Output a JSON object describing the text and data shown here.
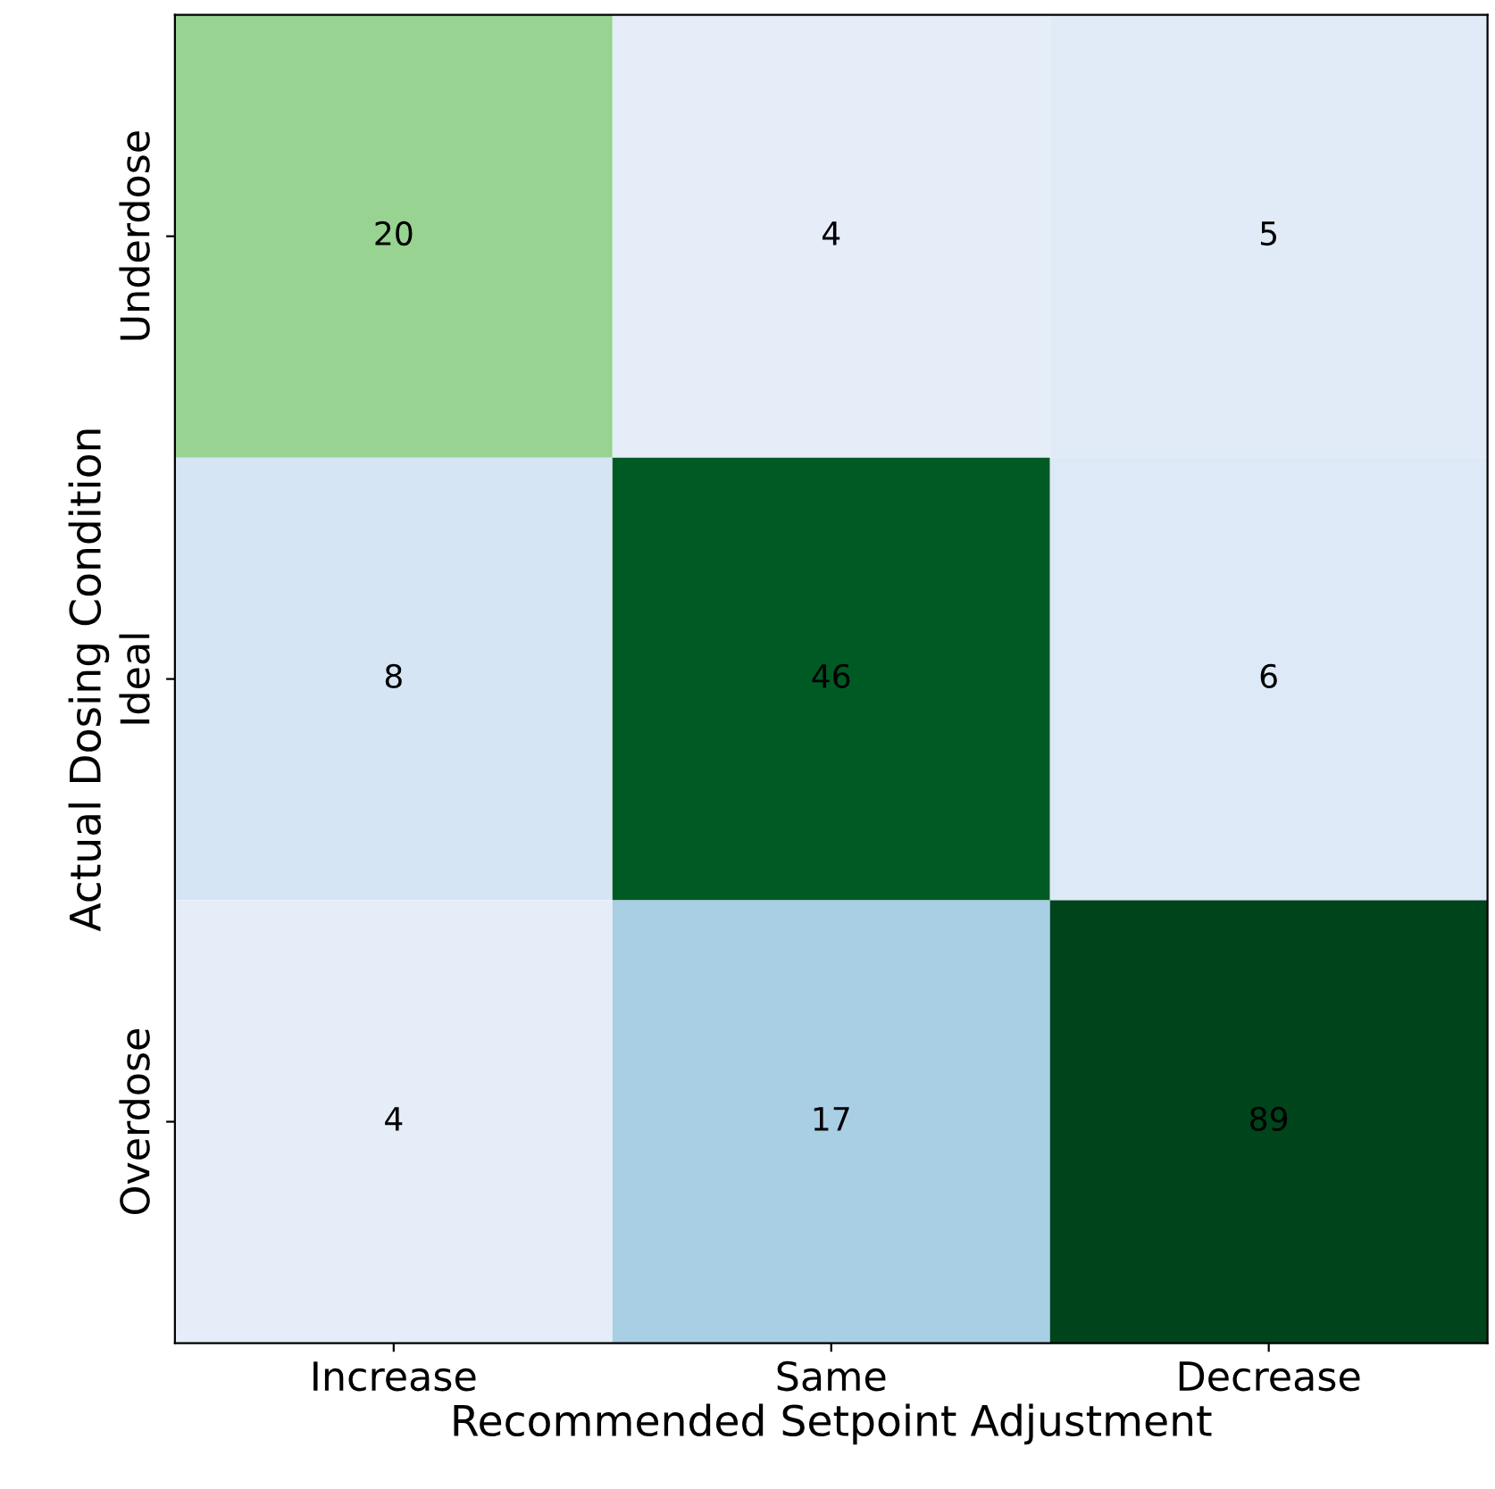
{
  "chart_data": {
    "type": "heatmap",
    "xlabel": "Recommended Setpoint Adjustment",
    "ylabel": "Actual Dosing Condition",
    "categories": [
      "Increase",
      "Same",
      "Decrease"
    ],
    "y_categories": [
      "Underdose",
      "Ideal",
      "Overdose"
    ],
    "cells": [
      [
        20,
        4,
        5
      ],
      [
        8,
        46,
        6
      ],
      [
        4,
        17,
        89
      ]
    ],
    "colors": [
      [
        "#98d391",
        "#e5edf8",
        "#e1ebf7"
      ],
      [
        "#d6e5f4",
        "#005a24",
        "#dde9f6"
      ],
      [
        "#e5edf8",
        "#a9cfe5",
        "#00441b"
      ]
    ],
    "data_labels": true
  }
}
